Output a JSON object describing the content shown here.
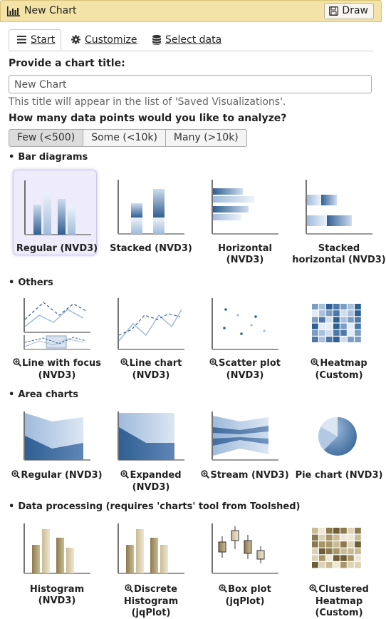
{
  "window": {
    "title": "New Chart",
    "draw_label": "Draw"
  },
  "tabs": [
    {
      "label": "Start"
    },
    {
      "label": "Customize"
    },
    {
      "label": "Select data"
    }
  ],
  "form": {
    "title_label": "Provide a chart title:",
    "title_value": "New Chart",
    "title_hint": "This title will appear in the list of 'Saved Visualizations'.",
    "points_label": "How many data points would you like to analyze?",
    "options": [
      "Few (<500)",
      "Some (<10k)",
      "Many (>10k)"
    ],
    "selected_option": "Few (<500)"
  },
  "sections": [
    {
      "title": "Bar diagrams",
      "items": [
        {
          "label": "Regular (NVD3)",
          "zoom": false
        },
        {
          "label": "Stacked (NVD3)",
          "zoom": false
        },
        {
          "label": "Horizontal (NVD3)",
          "zoom": false
        },
        {
          "label": "Stacked horizontal (NVD3)",
          "zoom": false
        }
      ]
    },
    {
      "title": "Others",
      "items": [
        {
          "label": "Line with focus (NVD3)",
          "zoom": true
        },
        {
          "label": "Line chart (NVD3)",
          "zoom": true
        },
        {
          "label": "Scatter plot (NVD3)",
          "zoom": true
        },
        {
          "label": "Heatmap (Custom)",
          "zoom": true
        }
      ]
    },
    {
      "title": "Area charts",
      "items": [
        {
          "label": "Regular (NVD3)",
          "zoom": true
        },
        {
          "label": "Expanded (NVD3)",
          "zoom": true
        },
        {
          "label": "Stream (NVD3)",
          "zoom": true
        },
        {
          "label": "Pie chart (NVD3)",
          "zoom": false
        }
      ]
    },
    {
      "title": "Data processing (requires 'charts' tool from Toolshed)",
      "items": [
        {
          "label": "Histogram (NVD3)",
          "zoom": false
        },
        {
          "label": "Discrete Histogram (jqPlot)",
          "zoom": true
        },
        {
          "label": "Box plot (jqPlot)",
          "zoom": true
        },
        {
          "label": "Clustered Heatmap (Custom)",
          "zoom": true
        }
      ]
    }
  ],
  "colors": {
    "titlebar": "#f3e3a6",
    "blue": "#2f5f93",
    "gold": "#8c7a4e",
    "selected": "#eeecfa"
  }
}
